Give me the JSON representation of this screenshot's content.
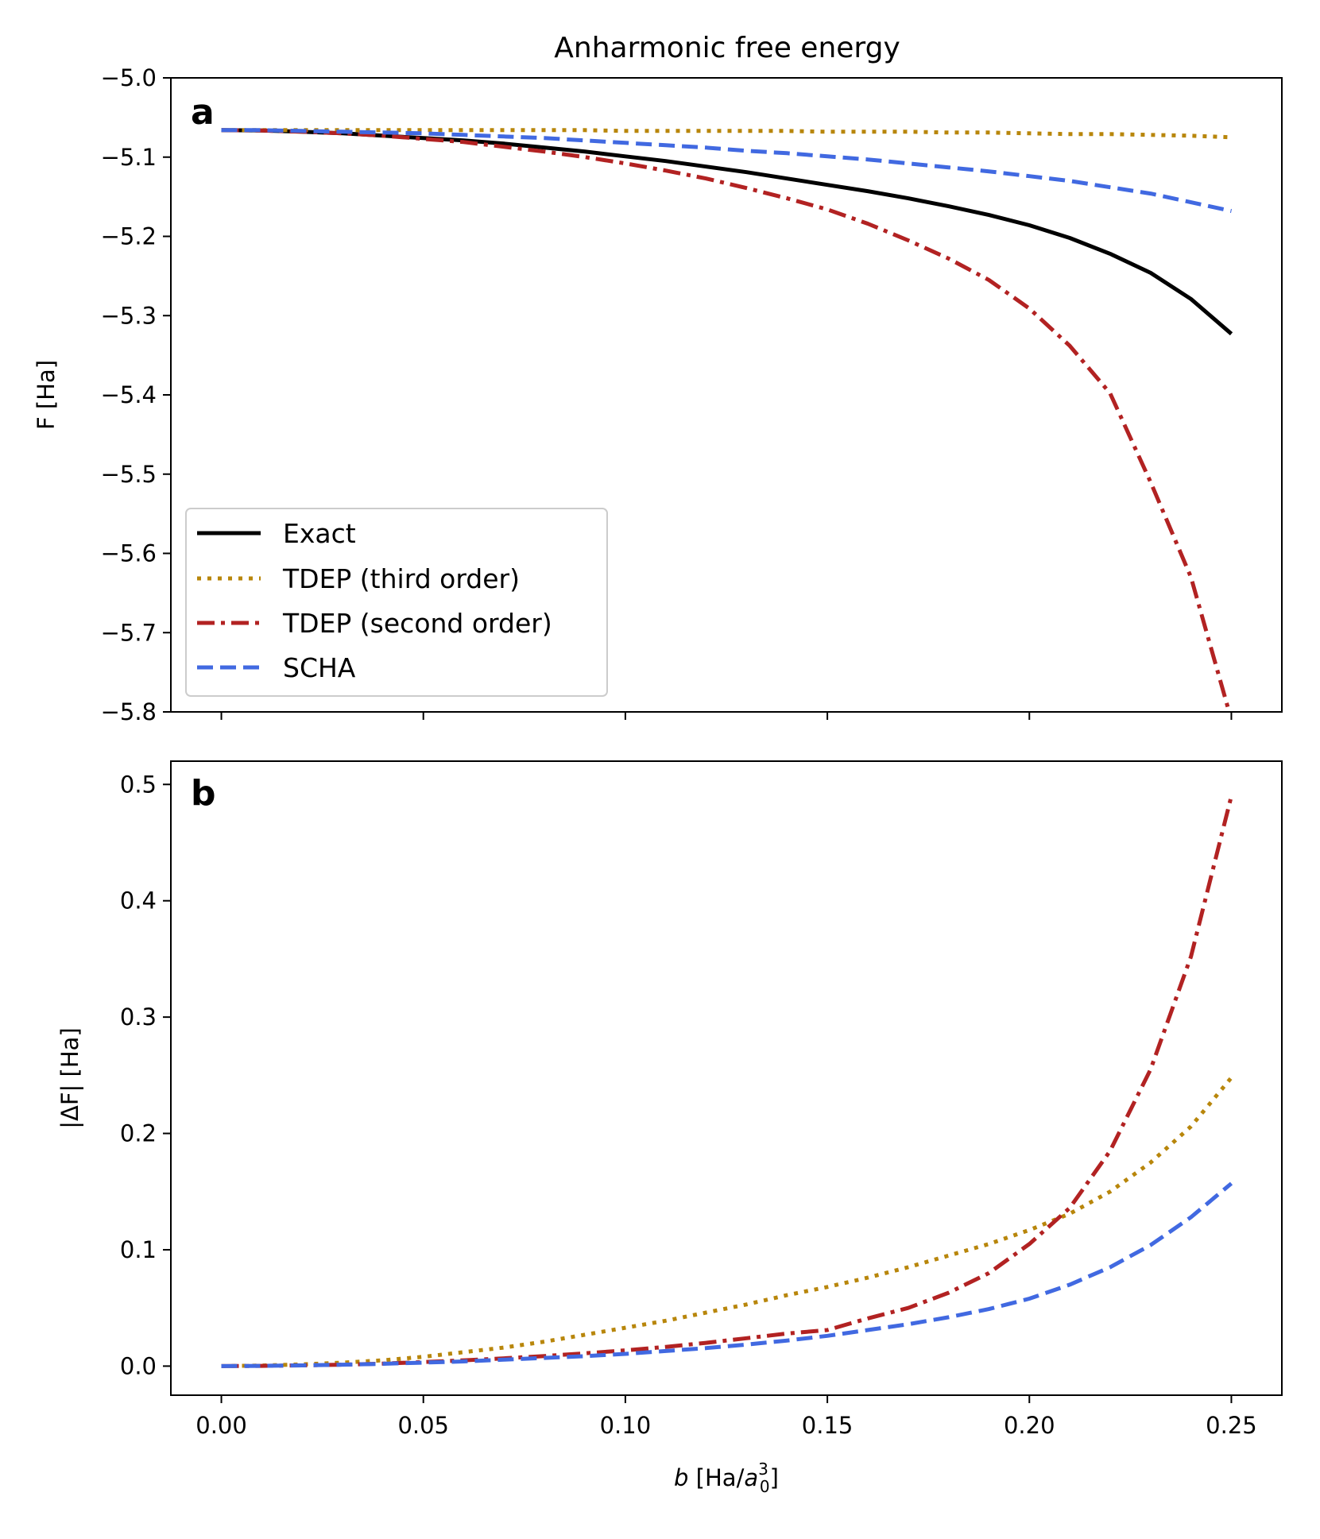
{
  "chart_data": {
    "title": "Anharmonic free energy",
    "x": [
      0.0,
      0.01,
      0.02,
      0.03,
      0.04,
      0.05,
      0.06,
      0.07,
      0.08,
      0.09,
      0.1,
      0.11,
      0.12,
      0.13,
      0.14,
      0.15,
      0.16,
      0.17,
      0.18,
      0.19,
      0.2,
      0.21,
      0.22,
      0.23,
      0.24,
      0.25
    ],
    "xlim": [
      -0.0125,
      0.2625
    ],
    "xticks": [
      0.0,
      0.05,
      0.1,
      0.15,
      0.2,
      0.25
    ],
    "xtick_labels": [
      "0.00",
      "0.05",
      "0.10",
      "0.15",
      "0.20",
      "0.25"
    ],
    "xlabel": {
      "italic": "b",
      "before": " [Ha/",
      "base": "a",
      "sub": "0",
      "sup": "3",
      "after": "]"
    },
    "colors": {
      "Exact": "#000000",
      "TDEP (third order)": "#b8860b",
      "TDEP (second order)": "#b22222",
      "SCHA": "#4169e1"
    },
    "panels": [
      {
        "label": "a",
        "type": "line",
        "ylabel": "F [Ha]",
        "ylim": [
          -5.8,
          -5.0
        ],
        "yticks": [
          -5.0,
          -5.1,
          -5.2,
          -5.3,
          -5.4,
          -5.5,
          -5.6,
          -5.7,
          -5.8
        ],
        "ytick_labels": [
          "−5.0",
          "−5.1",
          "−5.2",
          "−5.3",
          "−5.4",
          "−5.5",
          "−5.6",
          "−5.7",
          "−5.8"
        ],
        "legend": {
          "placement": "lower-left",
          "entries": [
            "Exact",
            "TDEP (third order)",
            "TDEP (second order)",
            "SCHA"
          ]
        },
        "series": [
          {
            "name": "Exact",
            "style": "solid",
            "values": [
              -5.066,
              -5.0665,
              -5.068,
              -5.07,
              -5.073,
              -5.076,
              -5.079,
              -5.083,
              -5.088,
              -5.093,
              -5.099,
              -5.105,
              -5.112,
              -5.119,
              -5.127,
              -5.135,
              -5.143,
              -5.152,
              -5.162,
              -5.173,
              -5.186,
              -5.202,
              -5.222,
              -5.246,
              -5.279,
              -5.323
            ]
          },
          {
            "name": "TDEP (third order)",
            "style": "dotted",
            "values": [
              -5.066,
              -5.066,
              -5.066,
              -5.066,
              -5.066,
              -5.066,
              -5.066,
              -5.066,
              -5.066,
              -5.066,
              -5.067,
              -5.067,
              -5.067,
              -5.067,
              -5.067,
              -5.068,
              -5.068,
              -5.068,
              -5.069,
              -5.069,
              -5.07,
              -5.071,
              -5.071,
              -5.072,
              -5.073,
              -5.075
            ]
          },
          {
            "name": "TDEP (second order)",
            "style": "dashdot",
            "values": [
              -5.066,
              -5.0665,
              -5.068,
              -5.07,
              -5.073,
              -5.077,
              -5.081,
              -5.087,
              -5.093,
              -5.1,
              -5.108,
              -5.117,
              -5.127,
              -5.139,
              -5.152,
              -5.166,
              -5.184,
              -5.205,
              -5.228,
              -5.255,
              -5.291,
              -5.338,
              -5.398,
              -5.51,
              -5.63,
              -5.81
            ]
          },
          {
            "name": "SCHA",
            "style": "dashed",
            "values": [
              -5.066,
              -5.066,
              -5.067,
              -5.068,
              -5.069,
              -5.07,
              -5.072,
              -5.074,
              -5.076,
              -5.079,
              -5.082,
              -5.085,
              -5.088,
              -5.092,
              -5.095,
              -5.099,
              -5.103,
              -5.108,
              -5.113,
              -5.118,
              -5.124,
              -5.13,
              -5.138,
              -5.146,
              -5.157,
              -5.168
            ]
          }
        ]
      },
      {
        "label": "b",
        "type": "line",
        "ylabel": "|ΔF| [Ha]",
        "ylim": [
          -0.025,
          0.52
        ],
        "yticks": [
          0.0,
          0.1,
          0.2,
          0.3,
          0.4,
          0.5
        ],
        "ytick_labels": [
          "0.0",
          "0.1",
          "0.2",
          "0.3",
          "0.4",
          "0.5"
        ],
        "series": [
          {
            "name": "TDEP (third order)",
            "style": "dotted",
            "values": [
              0.0,
              0.0005,
              0.0015,
              0.003,
              0.005,
              0.008,
              0.012,
              0.016,
              0.021,
              0.027,
              0.033,
              0.039,
              0.046,
              0.053,
              0.061,
              0.068,
              0.076,
              0.085,
              0.095,
              0.105,
              0.117,
              0.131,
              0.15,
              0.175,
              0.206,
              0.248
            ]
          },
          {
            "name": "TDEP (second order)",
            "style": "dashdot",
            "values": [
              0.0,
              0.0002,
              0.0006,
              0.0012,
              0.0022,
              0.0035,
              0.005,
              0.0067,
              0.0087,
              0.011,
              0.0135,
              0.0165,
              0.02,
              0.024,
              0.028,
              0.031,
              0.041,
              0.05,
              0.063,
              0.08,
              0.105,
              0.136,
              0.185,
              0.255,
              0.352,
              0.49
            ]
          },
          {
            "name": "SCHA",
            "style": "dashed",
            "values": [
              0.0,
              0.0002,
              0.0006,
              0.0012,
              0.002,
              0.003,
              0.004,
              0.0055,
              0.007,
              0.0085,
              0.0105,
              0.013,
              0.0155,
              0.0185,
              0.022,
              0.026,
              0.031,
              0.036,
              0.042,
              0.049,
              0.058,
              0.07,
              0.085,
              0.104,
              0.128,
              0.157
            ]
          }
        ]
      }
    ]
  }
}
